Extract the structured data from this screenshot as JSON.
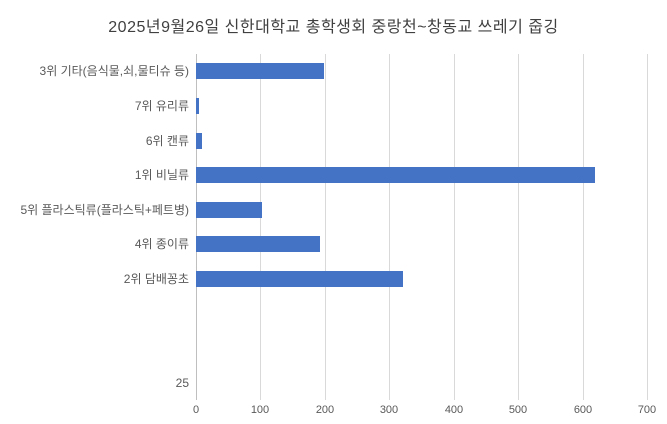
{
  "chart_data": {
    "type": "bar",
    "orientation": "horizontal",
    "title": "2025년9월26일 신한대학교 총학생회 중랑천~창동교 쓰레기 줍깅",
    "categories": [
      "3위 기타(음식물,쇠,물티슈 등)",
      "7위 유리류",
      "6위 캔류",
      "1위 비닐류",
      "5위 플라스틱류(플라스틱+페트병)",
      "4위 종이류",
      "2위 담배꽁초",
      "",
      "",
      "25"
    ],
    "values": [
      198,
      5,
      9,
      620,
      103,
      193,
      322,
      null,
      null,
      null
    ],
    "xlabel": "",
    "ylabel": "",
    "xlim": [
      0,
      700
    ],
    "x_ticks": [
      0,
      100,
      200,
      300,
      400,
      500,
      600,
      700
    ],
    "grid": true,
    "legend": false,
    "bar_color": "#4472C4",
    "gridline_color": "#d9d9d9",
    "zero_line_color": "#bfbfbf",
    "axis_label_color": "#595959",
    "title_color": "#404040"
  }
}
